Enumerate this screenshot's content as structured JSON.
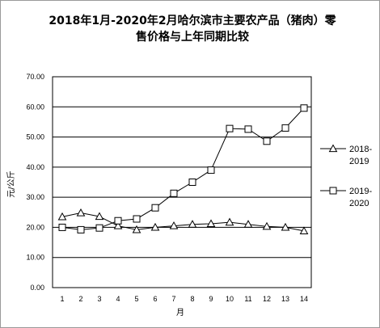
{
  "chart_data": {
    "type": "line",
    "title_lines": [
      "2018年1月-2020年2月哈尔滨市主要农产品（猪肉）零",
      "售价格与上年同期比较"
    ],
    "xlabel": "月",
    "ylabel": "元/公斤",
    "categories": [
      "1",
      "2",
      "3",
      "4",
      "5",
      "6",
      "7",
      "8",
      "9",
      "10",
      "11",
      "12",
      "13",
      "14"
    ],
    "ylim": [
      0,
      70
    ],
    "yticks": [
      "0.00",
      "10.00",
      "20.00",
      "30.00",
      "40.00",
      "50.00",
      "60.00",
      "70.00"
    ],
    "grid": "horizontal",
    "legend_position": "right",
    "series": [
      {
        "name_lines": [
          "2018-",
          "2019"
        ],
        "marker": "triangle",
        "values": [
          23.5,
          24.8,
          23.6,
          20.5,
          19.2,
          20.0,
          20.5,
          21.0,
          21.2,
          21.7,
          21.0,
          20.3,
          20.0,
          18.8
        ]
      },
      {
        "name_lines": [
          "2019-",
          "2020"
        ],
        "marker": "square",
        "values": [
          20.0,
          19.2,
          19.8,
          22.2,
          22.8,
          26.5,
          31.3,
          35.0,
          39.0,
          52.8,
          52.6,
          48.6,
          53.0,
          59.6
        ]
      }
    ]
  }
}
